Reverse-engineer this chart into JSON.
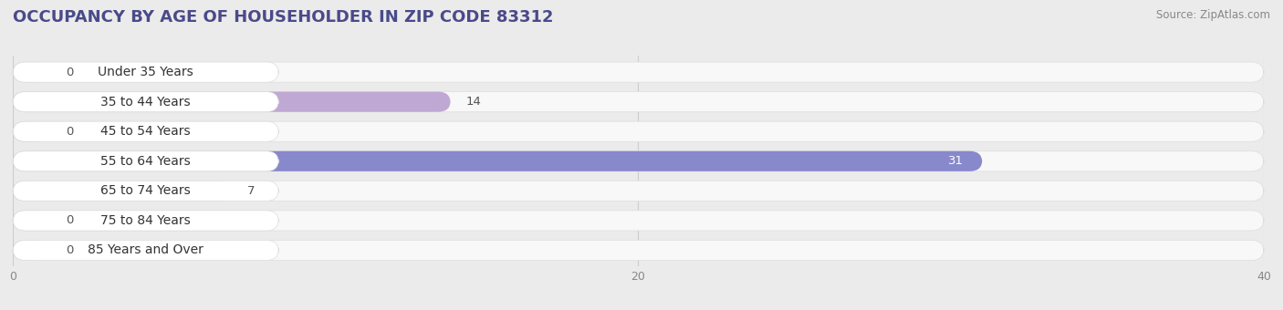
{
  "title": "OCCUPANCY BY AGE OF HOUSEHOLDER IN ZIP CODE 83312",
  "source": "Source: ZipAtlas.com",
  "categories": [
    "Under 35 Years",
    "35 to 44 Years",
    "45 to 54 Years",
    "55 to 64 Years",
    "65 to 74 Years",
    "75 to 84 Years",
    "85 Years and Over"
  ],
  "values": [
    0,
    14,
    0,
    31,
    7,
    0,
    0
  ],
  "bar_colors": [
    "#a8cce0",
    "#c0a8d4",
    "#74cec0",
    "#8888cc",
    "#f4a0b8",
    "#f8cca0",
    "#f4b0a0"
  ],
  "xlim_data": [
    0,
    40
  ],
  "xticks": [
    0,
    20,
    40
  ],
  "background_color": "#ebebeb",
  "bar_bg_color": "#f8f8f8",
  "title_fontsize": 13,
  "label_fontsize": 10,
  "value_fontsize": 9.5
}
